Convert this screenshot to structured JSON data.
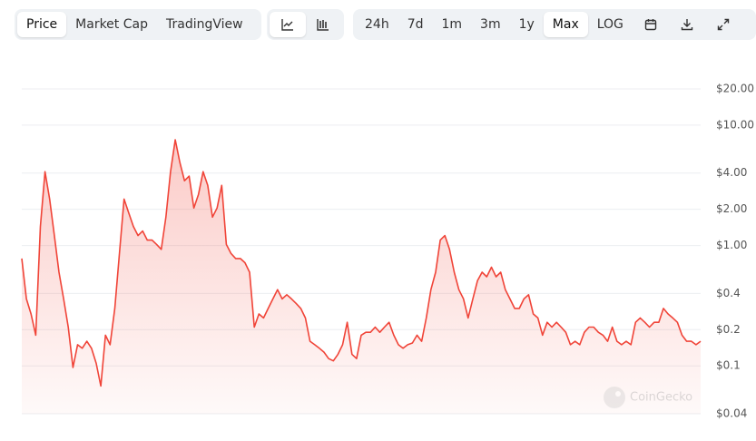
{
  "toolbar": {
    "tabs": [
      "Price",
      "Market Cap",
      "TradingView"
    ],
    "active_tab": 0,
    "ranges": [
      "24h",
      "7d",
      "1m",
      "3m",
      "1y",
      "Max"
    ],
    "active_range": 5,
    "scale": "LOG"
  },
  "watermark": "CoinGecko",
  "chart_data": {
    "type": "area",
    "color": "#f04438",
    "log_scale": true,
    "grid": true,
    "ylim": [
      0.04,
      20
    ],
    "yticks": [
      {
        "value": 20,
        "label": "$20.00"
      },
      {
        "value": 10,
        "label": "$10.00"
      },
      {
        "value": 4,
        "label": "$4.00"
      },
      {
        "value": 2,
        "label": "$2.00"
      },
      {
        "value": 1,
        "label": "$1.00"
      },
      {
        "value": 0.4,
        "label": "$0.4"
      },
      {
        "value": 0.2,
        "label": "$0.2"
      },
      {
        "value": 0.1,
        "label": "$0.1"
      },
      {
        "value": 0.04,
        "label": "$0.04"
      }
    ],
    "values": [
      0.78,
      0.36,
      0.27,
      0.18,
      1.44,
      4.11,
      2.43,
      1.21,
      0.6,
      0.36,
      0.21,
      0.097,
      0.15,
      0.14,
      0.16,
      0.14,
      0.105,
      0.068,
      0.18,
      0.15,
      0.3,
      0.86,
      2.43,
      1.87,
      1.44,
      1.21,
      1.32,
      1.11,
      1.11,
      1.02,
      0.93,
      1.72,
      4.11,
      7.57,
      4.89,
      3.45,
      3.77,
      2.05,
      2.66,
      4.11,
      3.16,
      1.72,
      2.05,
      3.16,
      1.02,
      0.86,
      0.78,
      0.78,
      0.72,
      0.6,
      0.21,
      0.27,
      0.25,
      0.3,
      0.36,
      0.43,
      0.36,
      0.39,
      0.36,
      0.33,
      0.3,
      0.25,
      0.16,
      0.15,
      0.14,
      0.13,
      0.115,
      0.11,
      0.125,
      0.15,
      0.23,
      0.125,
      0.115,
      0.18,
      0.19,
      0.19,
      0.21,
      0.19,
      0.21,
      0.23,
      0.18,
      0.15,
      0.14,
      0.15,
      0.155,
      0.18,
      0.16,
      0.25,
      0.43,
      0.6,
      1.11,
      1.21,
      0.93,
      0.6,
      0.43,
      0.36,
      0.25,
      0.36,
      0.51,
      0.6,
      0.55,
      0.66,
      0.55,
      0.6,
      0.43,
      0.36,
      0.3,
      0.3,
      0.36,
      0.39,
      0.27,
      0.25,
      0.18,
      0.23,
      0.21,
      0.23,
      0.21,
      0.19,
      0.15,
      0.16,
      0.15,
      0.19,
      0.21,
      0.21,
      0.19,
      0.18,
      0.16,
      0.21,
      0.16,
      0.15,
      0.16,
      0.15,
      0.23,
      0.25,
      0.23,
      0.21,
      0.23,
      0.23,
      0.3,
      0.27,
      0.25,
      0.23,
      0.18,
      0.16,
      0.16,
      0.15,
      0.16
    ]
  }
}
